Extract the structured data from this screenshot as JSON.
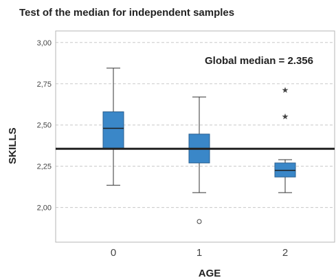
{
  "chart_data": {
    "type": "box",
    "title": "Test of the median for independent samples",
    "xlabel": "AGE",
    "ylabel": "SKILLS",
    "ylim": [
      1.79,
      3.07
    ],
    "yticks": [
      "3,00",
      "2,75",
      "2,50",
      "2,25",
      "2,00"
    ],
    "ytick_values": [
      3.0,
      2.75,
      2.5,
      2.25,
      2.0
    ],
    "grid": true,
    "categories": [
      "0",
      "1",
      "2"
    ],
    "boxes": [
      {
        "category": "0",
        "whisker_low": 2.135,
        "q1": 2.36,
        "median": 2.48,
        "q3": 2.58,
        "whisker_high": 2.845,
        "outliers": [],
        "extremes": []
      },
      {
        "category": "1",
        "whisker_low": 2.09,
        "q1": 2.27,
        "median": 2.355,
        "q3": 2.445,
        "whisker_high": 2.67,
        "outliers": [
          1.915
        ],
        "extremes": []
      },
      {
        "category": "2",
        "whisker_low": 2.09,
        "q1": 2.185,
        "median": 2.225,
        "q3": 2.27,
        "whisker_high": 2.29,
        "outliers": [],
        "extremes": [
          2.555,
          2.715
        ]
      }
    ],
    "reference_line": {
      "value": 2.356,
      "label": "Global median = 2.356"
    },
    "colors": {
      "box": "#3a87c8",
      "box_edge": "#2a5f8f",
      "line": "#222222",
      "grid": "#c8c8c8"
    }
  }
}
